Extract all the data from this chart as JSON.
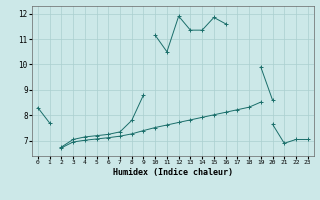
{
  "xlabel": "Humidex (Indice chaleur)",
  "xlim": [
    -0.5,
    23.5
  ],
  "ylim": [
    6.4,
    12.3
  ],
  "yticks": [
    7,
    8,
    9,
    10,
    11,
    12
  ],
  "xticks": [
    0,
    1,
    2,
    3,
    4,
    5,
    6,
    7,
    8,
    9,
    10,
    11,
    12,
    13,
    14,
    15,
    16,
    17,
    18,
    19,
    20,
    21,
    22,
    23
  ],
  "bg_color": "#cce8e8",
  "grid_color": "#aacfcf",
  "line_color": "#1a6e6a",
  "line1_y": [
    8.3,
    7.7,
    null,
    null,
    null,
    null,
    null,
    null,
    null,
    null,
    11.15,
    10.5,
    11.9,
    11.35,
    11.35,
    11.85,
    11.6,
    null,
    null,
    9.9,
    8.6,
    null,
    null,
    null
  ],
  "line2_y": [
    null,
    null,
    6.75,
    7.05,
    7.15,
    7.2,
    7.25,
    7.35,
    7.8,
    8.8,
    null,
    null,
    null,
    null,
    null,
    null,
    null,
    null,
    null,
    null,
    7.65,
    6.9,
    7.05,
    7.05
  ],
  "line3_y": [
    null,
    null,
    6.72,
    6.95,
    7.02,
    7.07,
    7.12,
    7.18,
    7.27,
    7.4,
    7.52,
    7.62,
    7.72,
    7.82,
    7.92,
    8.02,
    8.12,
    8.22,
    8.32,
    8.52,
    null,
    null,
    null,
    null
  ]
}
